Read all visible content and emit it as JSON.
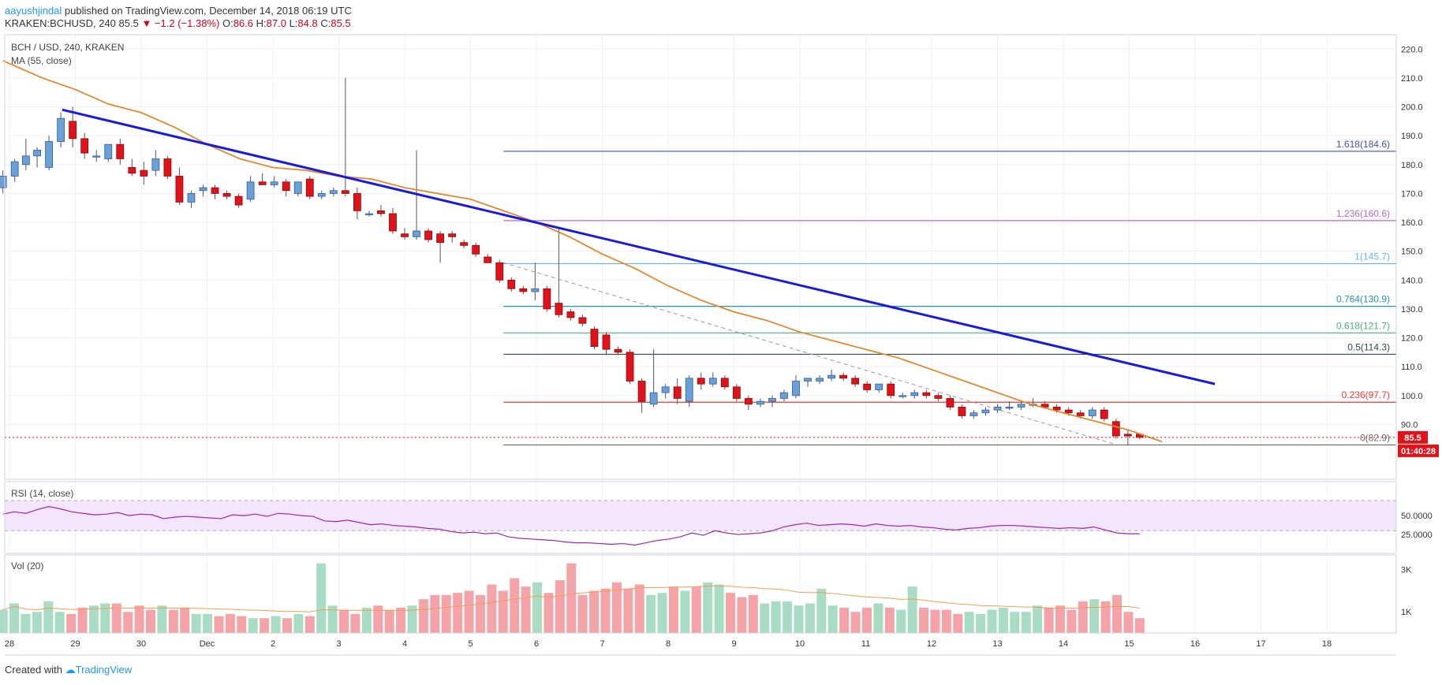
{
  "header": {
    "user": "aayushjindal",
    "published": " published on TradingView.com, December 14, 2018 06:19 UTC",
    "symbol": "KRAKEN:BCHUSD, 240",
    "last": "85.5",
    "change": "▼ −1.2 (−1.38%)",
    "o_label": "O:",
    "o": "86.6",
    "h_label": "H:",
    "h": "87.0",
    "l_label": "L:",
    "l": "84.8",
    "c_label": "C:",
    "c": "85.5"
  },
  "footer": {
    "created_with": "Created with",
    "brand": "TradingView"
  },
  "chart_data": {
    "type": "candlestick",
    "title": "BCH / USD, 240, KRAKEN",
    "indicator_label": "MA (55, close)",
    "ylim": [
      71,
      225
    ],
    "y_ticks": [
      "220.0",
      "210.0",
      "200.0",
      "190.0",
      "180.0",
      "170.0",
      "160.0",
      "150.0",
      "140.0",
      "130.0",
      "120.0",
      "110.0",
      "100.0",
      "90.0"
    ],
    "y_tick_values": [
      220,
      210,
      200,
      190,
      180,
      170,
      160,
      150,
      140,
      130,
      120,
      110,
      100,
      90
    ],
    "x_tick_labels": [
      "28",
      "29",
      "30",
      "Dec",
      "2",
      "3",
      "4",
      "5",
      "6",
      "7",
      "8",
      "9",
      "10",
      "11",
      "12",
      "13",
      "14",
      "15",
      "16",
      "17",
      "18"
    ],
    "x_tick_days": [
      0,
      1,
      2,
      3,
      4,
      5,
      6,
      7,
      8,
      9,
      10,
      11,
      12,
      13,
      14,
      15,
      16,
      17,
      18,
      19,
      20
    ],
    "candles": [
      {
        "t": -0.1,
        "o": 172,
        "h": 178,
        "l": 170,
        "c": 176
      },
      {
        "t": 0.08,
        "o": 176,
        "h": 182,
        "l": 174,
        "c": 181
      },
      {
        "t": 0.25,
        "o": 180,
        "h": 189,
        "l": 178,
        "c": 183
      },
      {
        "t": 0.42,
        "o": 183,
        "h": 186,
        "l": 179,
        "c": 185
      },
      {
        "t": 0.6,
        "o": 179,
        "h": 190,
        "l": 178,
        "c": 188
      },
      {
        "t": 0.78,
        "o": 188,
        "h": 198,
        "l": 186,
        "c": 196
      },
      {
        "t": 0.96,
        "o": 195,
        "h": 200,
        "l": 186,
        "c": 189
      },
      {
        "t": 1.14,
        "o": 189,
        "h": 191,
        "l": 182,
        "c": 184
      },
      {
        "t": 1.32,
        "o": 183,
        "h": 185,
        "l": 181,
        "c": 183
      },
      {
        "t": 1.5,
        "o": 182,
        "h": 187,
        "l": 181,
        "c": 187
      },
      {
        "t": 1.68,
        "o": 187,
        "h": 189,
        "l": 180,
        "c": 182
      },
      {
        "t": 1.86,
        "o": 179,
        "h": 182,
        "l": 176,
        "c": 177
      },
      {
        "t": 2.04,
        "o": 178,
        "h": 181,
        "l": 173,
        "c": 176
      },
      {
        "t": 2.22,
        "o": 178,
        "h": 185,
        "l": 176,
        "c": 182
      },
      {
        "t": 2.4,
        "o": 182,
        "h": 183,
        "l": 175,
        "c": 176
      },
      {
        "t": 2.58,
        "o": 176,
        "h": 179,
        "l": 166,
        "c": 167
      },
      {
        "t": 2.76,
        "o": 167,
        "h": 171,
        "l": 165,
        "c": 170
      },
      {
        "t": 2.94,
        "o": 171,
        "h": 173,
        "l": 169,
        "c": 172
      },
      {
        "t": 3.12,
        "o": 172,
        "h": 173,
        "l": 168,
        "c": 170
      },
      {
        "t": 3.3,
        "o": 170,
        "h": 171,
        "l": 168,
        "c": 169
      },
      {
        "t": 3.48,
        "o": 169,
        "h": 170,
        "l": 165,
        "c": 166
      },
      {
        "t": 3.66,
        "o": 168,
        "h": 176,
        "l": 167,
        "c": 174
      },
      {
        "t": 3.84,
        "o": 174,
        "h": 177,
        "l": 173,
        "c": 173
      },
      {
        "t": 4.02,
        "o": 173,
        "h": 176,
        "l": 172,
        "c": 174
      },
      {
        "t": 4.2,
        "o": 174,
        "h": 175,
        "l": 169,
        "c": 171
      },
      {
        "t": 4.38,
        "o": 170,
        "h": 174,
        "l": 169,
        "c": 174
      },
      {
        "t": 4.56,
        "o": 175,
        "h": 176,
        "l": 168,
        "c": 169
      },
      {
        "t": 4.74,
        "o": 169,
        "h": 171,
        "l": 168,
        "c": 170
      },
      {
        "t": 4.92,
        "o": 170,
        "h": 172,
        "l": 169,
        "c": 171
      },
      {
        "t": 5.1,
        "o": 171,
        "h": 210,
        "l": 169,
        "c": 170
      },
      {
        "t": 5.28,
        "o": 170,
        "h": 172,
        "l": 161,
        "c": 164
      },
      {
        "t": 5.46,
        "o": 163,
        "h": 164,
        "l": 162,
        "c": 163
      },
      {
        "t": 5.64,
        "o": 164,
        "h": 166,
        "l": 162,
        "c": 163
      },
      {
        "t": 5.82,
        "o": 163,
        "h": 165,
        "l": 156,
        "c": 157
      },
      {
        "t": 6,
        "o": 156,
        "h": 158,
        "l": 154,
        "c": 155
      },
      {
        "t": 6.18,
        "o": 155,
        "h": 185,
        "l": 154,
        "c": 157
      },
      {
        "t": 6.36,
        "o": 157,
        "h": 158,
        "l": 153,
        "c": 154
      },
      {
        "t": 6.54,
        "o": 156,
        "h": 157,
        "l": 146,
        "c": 153
      },
      {
        "t": 6.72,
        "o": 156,
        "h": 157,
        "l": 153,
        "c": 155
      },
      {
        "t": 6.9,
        "o": 153,
        "h": 154,
        "l": 151,
        "c": 152
      },
      {
        "t": 7.08,
        "o": 152,
        "h": 153,
        "l": 148,
        "c": 149
      },
      {
        "t": 7.26,
        "o": 148,
        "h": 149,
        "l": 146,
        "c": 146
      },
      {
        "t": 7.44,
        "o": 146,
        "h": 147,
        "l": 139,
        "c": 140
      },
      {
        "t": 7.62,
        "o": 140,
        "h": 141,
        "l": 136,
        "c": 137
      },
      {
        "t": 7.8,
        "o": 137,
        "h": 138,
        "l": 135,
        "c": 136
      },
      {
        "t": 7.98,
        "o": 136,
        "h": 146,
        "l": 133,
        "c": 137
      },
      {
        "t": 8.16,
        "o": 137,
        "h": 138,
        "l": 129,
        "c": 130
      },
      {
        "t": 8.34,
        "o": 132,
        "h": 158,
        "l": 127,
        "c": 128
      },
      {
        "t": 8.52,
        "o": 129,
        "h": 130,
        "l": 126,
        "c": 127
      },
      {
        "t": 8.7,
        "o": 127,
        "h": 128,
        "l": 124,
        "c": 125
      },
      {
        "t": 8.88,
        "o": 123,
        "h": 124,
        "l": 116,
        "c": 117
      },
      {
        "t": 9.06,
        "o": 121,
        "h": 122,
        "l": 114,
        "c": 116
      },
      {
        "t": 9.24,
        "o": 116,
        "h": 117,
        "l": 114,
        "c": 115
      },
      {
        "t": 9.42,
        "o": 115,
        "h": 116,
        "l": 104,
        "c": 105
      },
      {
        "t": 9.6,
        "o": 105,
        "h": 106,
        "l": 94,
        "c": 98
      },
      {
        "t": 9.78,
        "o": 97,
        "h": 116,
        "l": 96,
        "c": 101
      },
      {
        "t": 9.96,
        "o": 101,
        "h": 104,
        "l": 99,
        "c": 103
      },
      {
        "t": 10.14,
        "o": 103,
        "h": 106,
        "l": 97,
        "c": 99
      },
      {
        "t": 10.32,
        "o": 98,
        "h": 107,
        "l": 96,
        "c": 106
      },
      {
        "t": 10.5,
        "o": 106,
        "h": 108,
        "l": 102,
        "c": 104
      },
      {
        "t": 10.68,
        "o": 104,
        "h": 108,
        "l": 103,
        "c": 106
      },
      {
        "t": 10.86,
        "o": 106,
        "h": 107,
        "l": 102,
        "c": 103
      },
      {
        "t": 11.04,
        "o": 103,
        "h": 104,
        "l": 98,
        "c": 99
      },
      {
        "t": 11.22,
        "o": 99,
        "h": 100,
        "l": 95,
        "c": 97
      },
      {
        "t": 11.4,
        "o": 97,
        "h": 99,
        "l": 96,
        "c": 98
      },
      {
        "t": 11.58,
        "o": 98,
        "h": 100,
        "l": 96,
        "c": 99
      },
      {
        "t": 11.76,
        "o": 99,
        "h": 102,
        "l": 98,
        "c": 101
      },
      {
        "t": 11.94,
        "o": 100,
        "h": 107,
        "l": 99,
        "c": 105
      },
      {
        "t": 12.12,
        "o": 105,
        "h": 106,
        "l": 103,
        "c": 106
      },
      {
        "t": 12.3,
        "o": 105,
        "h": 107,
        "l": 104,
        "c": 106
      },
      {
        "t": 12.48,
        "o": 106,
        "h": 109,
        "l": 105,
        "c": 107
      },
      {
        "t": 12.66,
        "o": 107,
        "h": 108,
        "l": 105,
        "c": 106
      },
      {
        "t": 12.84,
        "o": 106,
        "h": 107,
        "l": 103,
        "c": 104
      },
      {
        "t": 13.02,
        "o": 104,
        "h": 105,
        "l": 101,
        "c": 102
      },
      {
        "t": 13.2,
        "o": 102,
        "h": 104,
        "l": 101,
        "c": 104
      },
      {
        "t": 13.38,
        "o": 104,
        "h": 105,
        "l": 99,
        "c": 100
      },
      {
        "t": 13.56,
        "o": 100,
        "h": 101,
        "l": 99,
        "c": 100
      },
      {
        "t": 13.74,
        "o": 100,
        "h": 102,
        "l": 99,
        "c": 101
      },
      {
        "t": 13.92,
        "o": 101,
        "h": 102,
        "l": 99,
        "c": 100
      },
      {
        "t": 14.1,
        "o": 100,
        "h": 101,
        "l": 98,
        "c": 99
      },
      {
        "t": 14.28,
        "o": 99,
        "h": 100,
        "l": 95,
        "c": 96
      },
      {
        "t": 14.46,
        "o": 96,
        "h": 97,
        "l": 92,
        "c": 93
      },
      {
        "t": 14.64,
        "o": 93,
        "h": 95,
        "l": 92,
        "c": 94
      },
      {
        "t": 14.82,
        "o": 94,
        "h": 96,
        "l": 93,
        "c": 95
      },
      {
        "t": 15,
        "o": 95,
        "h": 97,
        "l": 94,
        "c": 96
      },
      {
        "t": 15.18,
        "o": 96,
        "h": 98,
        "l": 95,
        "c": 96
      },
      {
        "t": 15.36,
        "o": 96,
        "h": 98,
        "l": 95,
        "c": 97
      },
      {
        "t": 15.54,
        "o": 97,
        "h": 99,
        "l": 96,
        "c": 97
      },
      {
        "t": 15.72,
        "o": 97,
        "h": 98,
        "l": 96,
        "c": 96
      },
      {
        "t": 15.9,
        "o": 96,
        "h": 97,
        "l": 94,
        "c": 95
      },
      {
        "t": 16.08,
        "o": 95,
        "h": 96,
        "l": 93,
        "c": 94
      },
      {
        "t": 16.26,
        "o": 94,
        "h": 95,
        "l": 92,
        "c": 93
      },
      {
        "t": 16.44,
        "o": 93,
        "h": 96,
        "l": 92,
        "c": 95
      },
      {
        "t": 16.62,
        "o": 95,
        "h": 96,
        "l": 91,
        "c": 92
      },
      {
        "t": 16.8,
        "o": 91,
        "h": 92,
        "l": 85,
        "c": 86
      },
      {
        "t": 16.98,
        "o": 86.6,
        "h": 88,
        "l": 83,
        "c": 86
      },
      {
        "t": 17.16,
        "o": 86.6,
        "h": 87,
        "l": 84.8,
        "c": 85.5
      }
    ],
    "ma55": {
      "name": "MA (55, close)",
      "x": [
        -0.1,
        0.5,
        1,
        1.5,
        2,
        2.5,
        3,
        3.5,
        4,
        4.5,
        5,
        5.5,
        6,
        6.5,
        7,
        7.5,
        8,
        8.5,
        9,
        9.5,
        10,
        10.5,
        11,
        11.5,
        12,
        12.5,
        13,
        13.5,
        14,
        14.5,
        15,
        15.5,
        16,
        16.5,
        17,
        17.5
      ],
      "y": [
        216,
        210,
        206,
        201,
        198,
        193,
        187,
        182,
        179,
        178,
        176,
        175,
        172,
        170,
        168,
        164,
        160,
        155,
        149,
        144,
        138,
        133,
        129,
        126,
        122,
        119,
        116,
        113,
        109,
        105,
        101,
        97,
        94,
        91,
        88,
        84
      ]
    },
    "trendline": {
      "x": [
        0.8,
        18.3
      ],
      "y": [
        199,
        104
      ]
    },
    "dashed_line": {
      "x": [
        7.5,
        16.8
      ],
      "y": [
        146,
        83
      ]
    },
    "fib_levels": [
      {
        "label": "1.618(184.6)",
        "value": 184.6,
        "color": "#3f51b5"
      },
      {
        "label": "1.236(160.6)",
        "value": 160.6,
        "color": "#ba68c8"
      },
      {
        "label": "1(145.7)",
        "value": 145.7,
        "color": "#64b5f6"
      },
      {
        "label": "0.764(130.9)",
        "value": 130.9,
        "color": "#2196a8"
      },
      {
        "label": "0.618(121.7)",
        "value": 121.7,
        "color": "#4caf80"
      },
      {
        "label": "0.5(114.3)",
        "value": 114.3,
        "color": "#37474f"
      },
      {
        "label": "0.236(97.7)",
        "value": 97.7,
        "color": "#e53935"
      },
      {
        "label": "0(82.9)",
        "value": 82.9,
        "color": "#666666"
      }
    ],
    "fib_start_day": 7.5,
    "last_price_label": "85.5",
    "countdown_label": "01:40:28",
    "rsi": {
      "label": "RSI (14, close)",
      "ticks": [
        "50.0000",
        "25.0000"
      ],
      "tick_values": [
        50,
        25
      ],
      "ylim": [
        0,
        95
      ],
      "band": [
        30,
        70
      ],
      "values": [
        52,
        55,
        53,
        58,
        62,
        59,
        55,
        53,
        51,
        52,
        54,
        50,
        52,
        51,
        46,
        48,
        49,
        48,
        47,
        46,
        51,
        50,
        52,
        49,
        53,
        52,
        50,
        49,
        43,
        42,
        44,
        41,
        38,
        39,
        37,
        36,
        35,
        33,
        32,
        29,
        27,
        28,
        26,
        27,
        22,
        20,
        19,
        18,
        17,
        15,
        14,
        14,
        13,
        12,
        13,
        11,
        14,
        17,
        19,
        22,
        27,
        24,
        30,
        27,
        25,
        26,
        27,
        30,
        35,
        38,
        40,
        37,
        38,
        39,
        38,
        36,
        39,
        37,
        36,
        37,
        35,
        34,
        32,
        31,
        33,
        34,
        36,
        37,
        37,
        36,
        35,
        34,
        33,
        34,
        33,
        35,
        31,
        27,
        26,
        26
      ]
    },
    "volume": {
      "label": "Vol (20)",
      "ticks": [
        "3K",
        "1K"
      ],
      "tick_values": [
        3000,
        1000
      ],
      "ylim": [
        0,
        3700
      ],
      "values": [
        1100,
        1400,
        900,
        1000,
        1500,
        1000,
        900,
        1200,
        1300,
        1400,
        1400,
        1000,
        1300,
        1100,
        1300,
        1100,
        1200,
        900,
        900,
        800,
        900,
        800,
        700,
        700,
        800,
        700,
        900,
        800,
        3300,
        1300,
        1100,
        900,
        1200,
        1300,
        1100,
        1200,
        1300,
        1600,
        1800,
        1800,
        1900,
        2000,
        1800,
        2300,
        2000,
        2600,
        2200,
        2400,
        1900,
        2500,
        3300,
        1800,
        2000,
        2100,
        2400,
        2100,
        2300,
        1800,
        1900,
        2200,
        2000,
        2200,
        2400,
        2300,
        1900,
        1700,
        1800,
        1400,
        1500,
        1500,
        1300,
        1400,
        2100,
        1300,
        1200,
        1000,
        1200,
        1400,
        1200,
        1100,
        2200,
        1200,
        1100,
        1100,
        900,
        1000,
        900,
        1100,
        1200,
        1000,
        1000,
        1300,
        1200,
        1300,
        1100,
        1500,
        1600,
        1500,
        1800,
        1000,
        700
      ]
    },
    "grid": true
  }
}
